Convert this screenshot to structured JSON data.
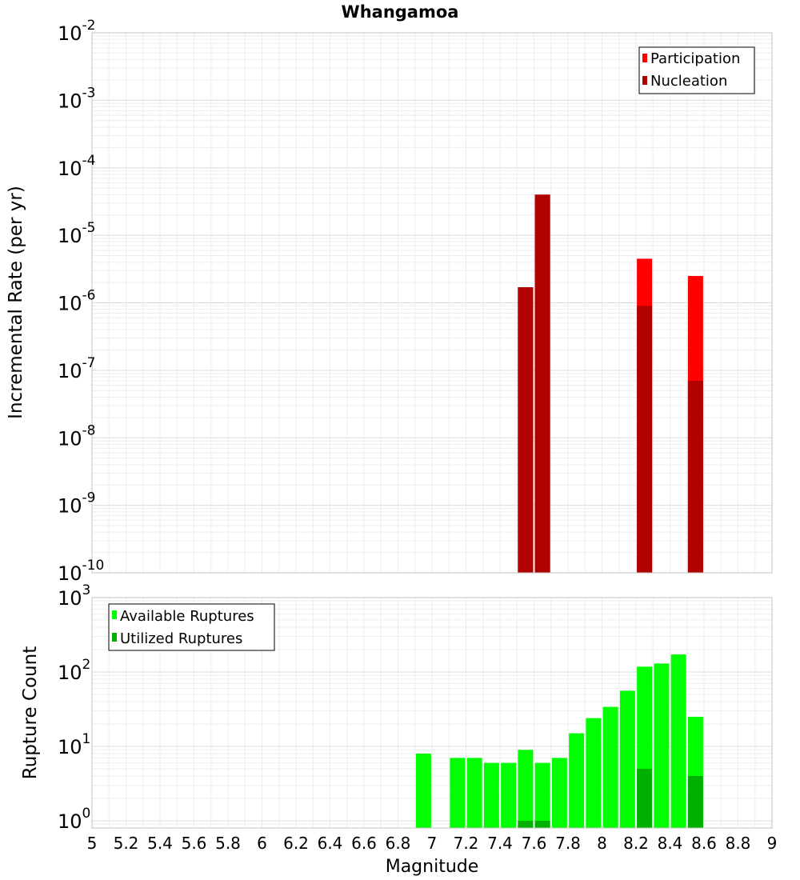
{
  "chart_data": [
    {
      "type": "bar",
      "title": "Whangamoa",
      "ylabel": "Incremental Rate (per yr)",
      "yscale": "log",
      "ylim": [
        1e-10,
        0.01
      ],
      "y_tick_base": "10",
      "y_tick_exponents": [
        "-10",
        "-9",
        "-8",
        "-7",
        "-6",
        "-5",
        "-4",
        "-3",
        "-2"
      ],
      "xlim": [
        5,
        9
      ],
      "grid": true,
      "legend_position": "top-right",
      "series": [
        {
          "name": "Participation",
          "color": "#ff0000",
          "x": [
            7.55,
            7.65,
            8.25,
            8.55
          ],
          "values": [
            1.7e-06,
            4e-05,
            4.5e-06,
            2.5e-06
          ]
        },
        {
          "name": "Nucleation",
          "color": "#b00000",
          "x": [
            7.55,
            7.65,
            8.25,
            8.55
          ],
          "values": [
            1.7e-06,
            4e-05,
            9e-07,
            7e-08
          ]
        }
      ]
    },
    {
      "type": "bar",
      "xlabel": "Magnitude",
      "ylabel": "Rupture Count",
      "yscale": "log",
      "ylim": [
        0.8,
        1000
      ],
      "y_tick_base": "10",
      "y_tick_exponents": [
        "0",
        "1",
        "2",
        "3"
      ],
      "xlim": [
        5,
        9
      ],
      "x_tick_labels": [
        "5",
        "5.2",
        "5.4",
        "5.6",
        "5.8",
        "6",
        "6.2",
        "6.4",
        "6.6",
        "6.8",
        "7",
        "7.2",
        "7.4",
        "7.6",
        "7.8",
        "8",
        "8.2",
        "8.4",
        "8.6",
        "8.8",
        "9"
      ],
      "grid": true,
      "legend_position": "top-left",
      "series": [
        {
          "name": "Available Ruptures",
          "color": "#00ff00",
          "x": [
            6.95,
            7.15,
            7.25,
            7.35,
            7.45,
            7.55,
            7.65,
            7.75,
            7.85,
            7.95,
            8.05,
            8.15,
            8.25,
            8.35,
            8.45,
            8.55
          ],
          "values": [
            8,
            7,
            7,
            6,
            6,
            9,
            6,
            7,
            15,
            24,
            34,
            56,
            118,
            130,
            172,
            25
          ]
        },
        {
          "name": "Utilized Ruptures",
          "color": "#00b000",
          "x": [
            7.55,
            7.65,
            8.25,
            8.55
          ],
          "values": [
            1,
            1,
            5,
            4
          ]
        }
      ]
    }
  ]
}
